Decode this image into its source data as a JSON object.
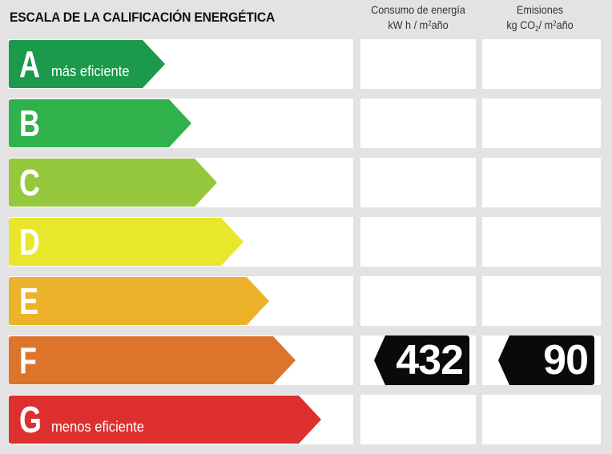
{
  "title": "ESCALA DE LA CALIFICACIÓN ENERGÉTICA",
  "columns": {
    "consumo": {
      "line1": "Consumo de energía",
      "line2_pre": "kW h / m",
      "line2_sup": "2",
      "line2_post": "año"
    },
    "emisiones": {
      "line1": "Emisiones",
      "line2_pre": "kg CO",
      "line2_sub": "2",
      "line2_mid": "/ m",
      "line2_sup": "2",
      "line2_post": "año"
    }
  },
  "ratings": [
    {
      "letter": "A",
      "label": "más eficiente",
      "color": "#1a9a4a"
    },
    {
      "letter": "B",
      "label": "",
      "color": "#2fb14b"
    },
    {
      "letter": "C",
      "label": "",
      "color": "#96c83e"
    },
    {
      "letter": "D",
      "label": "",
      "color": "#e9e72c"
    },
    {
      "letter": "E",
      "label": "",
      "color": "#ecb32a"
    },
    {
      "letter": "F",
      "label": "",
      "color": "#dc742c"
    },
    {
      "letter": "G",
      "label": "menos eficiente",
      "color": "#dc2f2e"
    }
  ],
  "consumo_rating": "F",
  "consumo_value": "432",
  "emisiones_rating": "F",
  "emisiones_value": "90",
  "badge_color": "#0a0a0a"
}
